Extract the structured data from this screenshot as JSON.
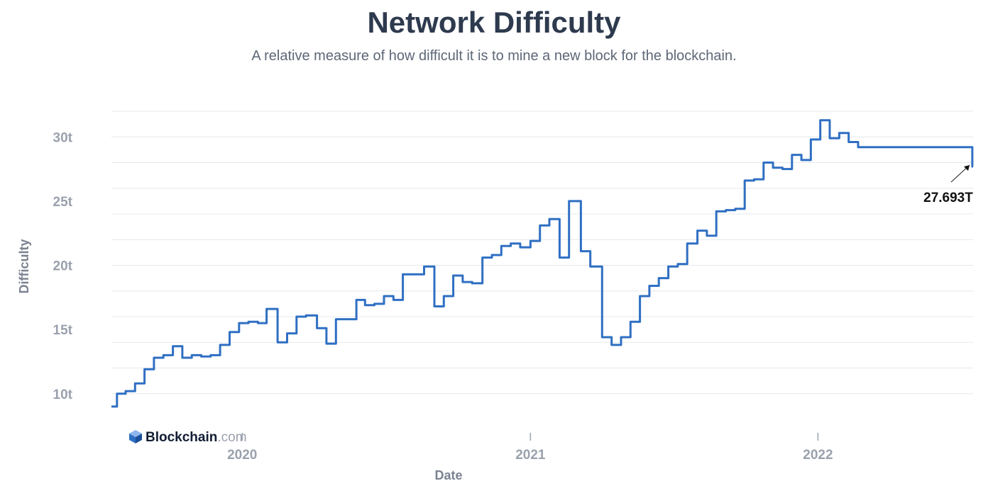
{
  "header": {
    "title": "Network Difficulty",
    "subtitle": "A relative measure of how difficult it is to mine a new block for the blockchain."
  },
  "branding": {
    "name": "Blockchain",
    "suffix": ".com"
  },
  "annotation": {
    "label": "27.693T",
    "x": "2022-07-17",
    "y": 27.693
  },
  "colors": {
    "series": "#2f6fc3",
    "grid": "#e6e8ec",
    "tick": "#9aa1ad",
    "title": "#2e3a4e"
  },
  "chart_data": {
    "type": "line",
    "step": true,
    "title": "Network Difficulty",
    "subtitle": "A relative measure of how difficult it is to mine a new block for the blockchain.",
    "xlabel": "Date",
    "ylabel": "Difficulty",
    "xlim": [
      "2019-07-19",
      "2022-07-17"
    ],
    "ylim": [
      8,
      32
    ],
    "yticks": [
      10,
      15,
      20,
      25,
      30
    ],
    "ytick_labels": [
      "10t",
      "15t",
      "20t",
      "25t",
      "30t"
    ],
    "xticks": [
      "2020-01-01",
      "2021-01-01",
      "2022-01-01"
    ],
    "xtick_labels": [
      "2020",
      "2021",
      "2022"
    ],
    "grid": true,
    "legend": "none",
    "series": [
      {
        "points": [
          [
            "2019-07-19",
            9.0
          ],
          [
            "2019-07-25",
            9.0
          ],
          [
            "2019-07-26",
            10.0
          ],
          [
            "2019-08-06",
            10.2
          ],
          [
            "2019-08-18",
            10.8
          ],
          [
            "2019-08-30",
            11.9
          ],
          [
            "2019-09-11",
            12.8
          ],
          [
            "2019-09-23",
            13.0
          ],
          [
            "2019-10-05",
            13.7
          ],
          [
            "2019-10-17",
            12.8
          ],
          [
            "2019-10-29",
            13.0
          ],
          [
            "2019-11-10",
            12.9
          ],
          [
            "2019-11-22",
            13.0
          ],
          [
            "2019-12-04",
            13.8
          ],
          [
            "2019-12-16",
            14.8
          ],
          [
            "2019-12-28",
            15.5
          ],
          [
            "2020-01-09",
            15.6
          ],
          [
            "2020-01-21",
            15.5
          ],
          [
            "2020-02-01",
            16.6
          ],
          [
            "2020-02-15",
            14.0
          ],
          [
            "2020-02-27",
            14.7
          ],
          [
            "2020-03-10",
            16.0
          ],
          [
            "2020-03-22",
            16.1
          ],
          [
            "2020-04-05",
            15.1
          ],
          [
            "2020-04-17",
            13.9
          ],
          [
            "2020-04-29",
            15.8
          ],
          [
            "2020-05-25",
            17.3
          ],
          [
            "2020-06-05",
            16.9
          ],
          [
            "2020-06-17",
            17.0
          ],
          [
            "2020-06-29",
            17.6
          ],
          [
            "2020-07-11",
            17.3
          ],
          [
            "2020-07-23",
            19.3
          ],
          [
            "2020-08-19",
            19.9
          ],
          [
            "2020-09-01",
            16.8
          ],
          [
            "2020-09-13",
            17.6
          ],
          [
            "2020-09-25",
            19.2
          ],
          [
            "2020-10-07",
            18.7
          ],
          [
            "2020-10-19",
            18.6
          ],
          [
            "2020-11-01",
            20.6
          ],
          [
            "2020-11-13",
            20.8
          ],
          [
            "2020-11-25",
            21.5
          ],
          [
            "2020-12-07",
            21.7
          ],
          [
            "2020-12-19",
            21.4
          ],
          [
            "2021-01-01",
            21.9
          ],
          [
            "2021-01-13",
            23.1
          ],
          [
            "2021-01-25",
            23.6
          ],
          [
            "2021-02-07",
            20.6
          ],
          [
            "2021-02-19",
            25.0
          ],
          [
            "2021-03-06",
            21.1
          ],
          [
            "2021-03-18",
            19.9
          ],
          [
            "2021-04-02",
            14.4
          ],
          [
            "2021-04-14",
            13.8
          ],
          [
            "2021-04-26",
            14.4
          ],
          [
            "2021-05-08",
            15.6
          ],
          [
            "2021-05-20",
            17.6
          ],
          [
            "2021-06-01",
            18.4
          ],
          [
            "2021-06-13",
            19.0
          ],
          [
            "2021-06-25",
            19.9
          ],
          [
            "2021-07-07",
            20.1
          ],
          [
            "2021-07-19",
            21.7
          ],
          [
            "2021-08-01",
            22.7
          ],
          [
            "2021-08-13",
            22.3
          ],
          [
            "2021-08-25",
            24.2
          ],
          [
            "2021-09-06",
            24.3
          ],
          [
            "2021-09-18",
            24.4
          ],
          [
            "2021-09-30",
            26.6
          ],
          [
            "2021-10-12",
            26.7
          ],
          [
            "2021-10-24",
            28.0
          ],
          [
            "2021-11-05",
            27.6
          ],
          [
            "2021-11-17",
            27.5
          ],
          [
            "2021-11-29",
            28.6
          ],
          [
            "2021-12-11",
            28.2
          ],
          [
            "2021-12-23",
            29.8
          ],
          [
            "2022-01-04",
            31.3
          ],
          [
            "2022-01-16",
            29.9
          ],
          [
            "2022-01-28",
            30.3
          ],
          [
            "2022-02-09",
            29.6
          ],
          [
            "2022-02-21",
            29.2
          ],
          [
            "2022-03-05",
            29.2
          ],
          [
            "2022-07-16",
            27.693
          ],
          [
            "2022-07-17",
            27.693
          ]
        ]
      }
    ]
  }
}
